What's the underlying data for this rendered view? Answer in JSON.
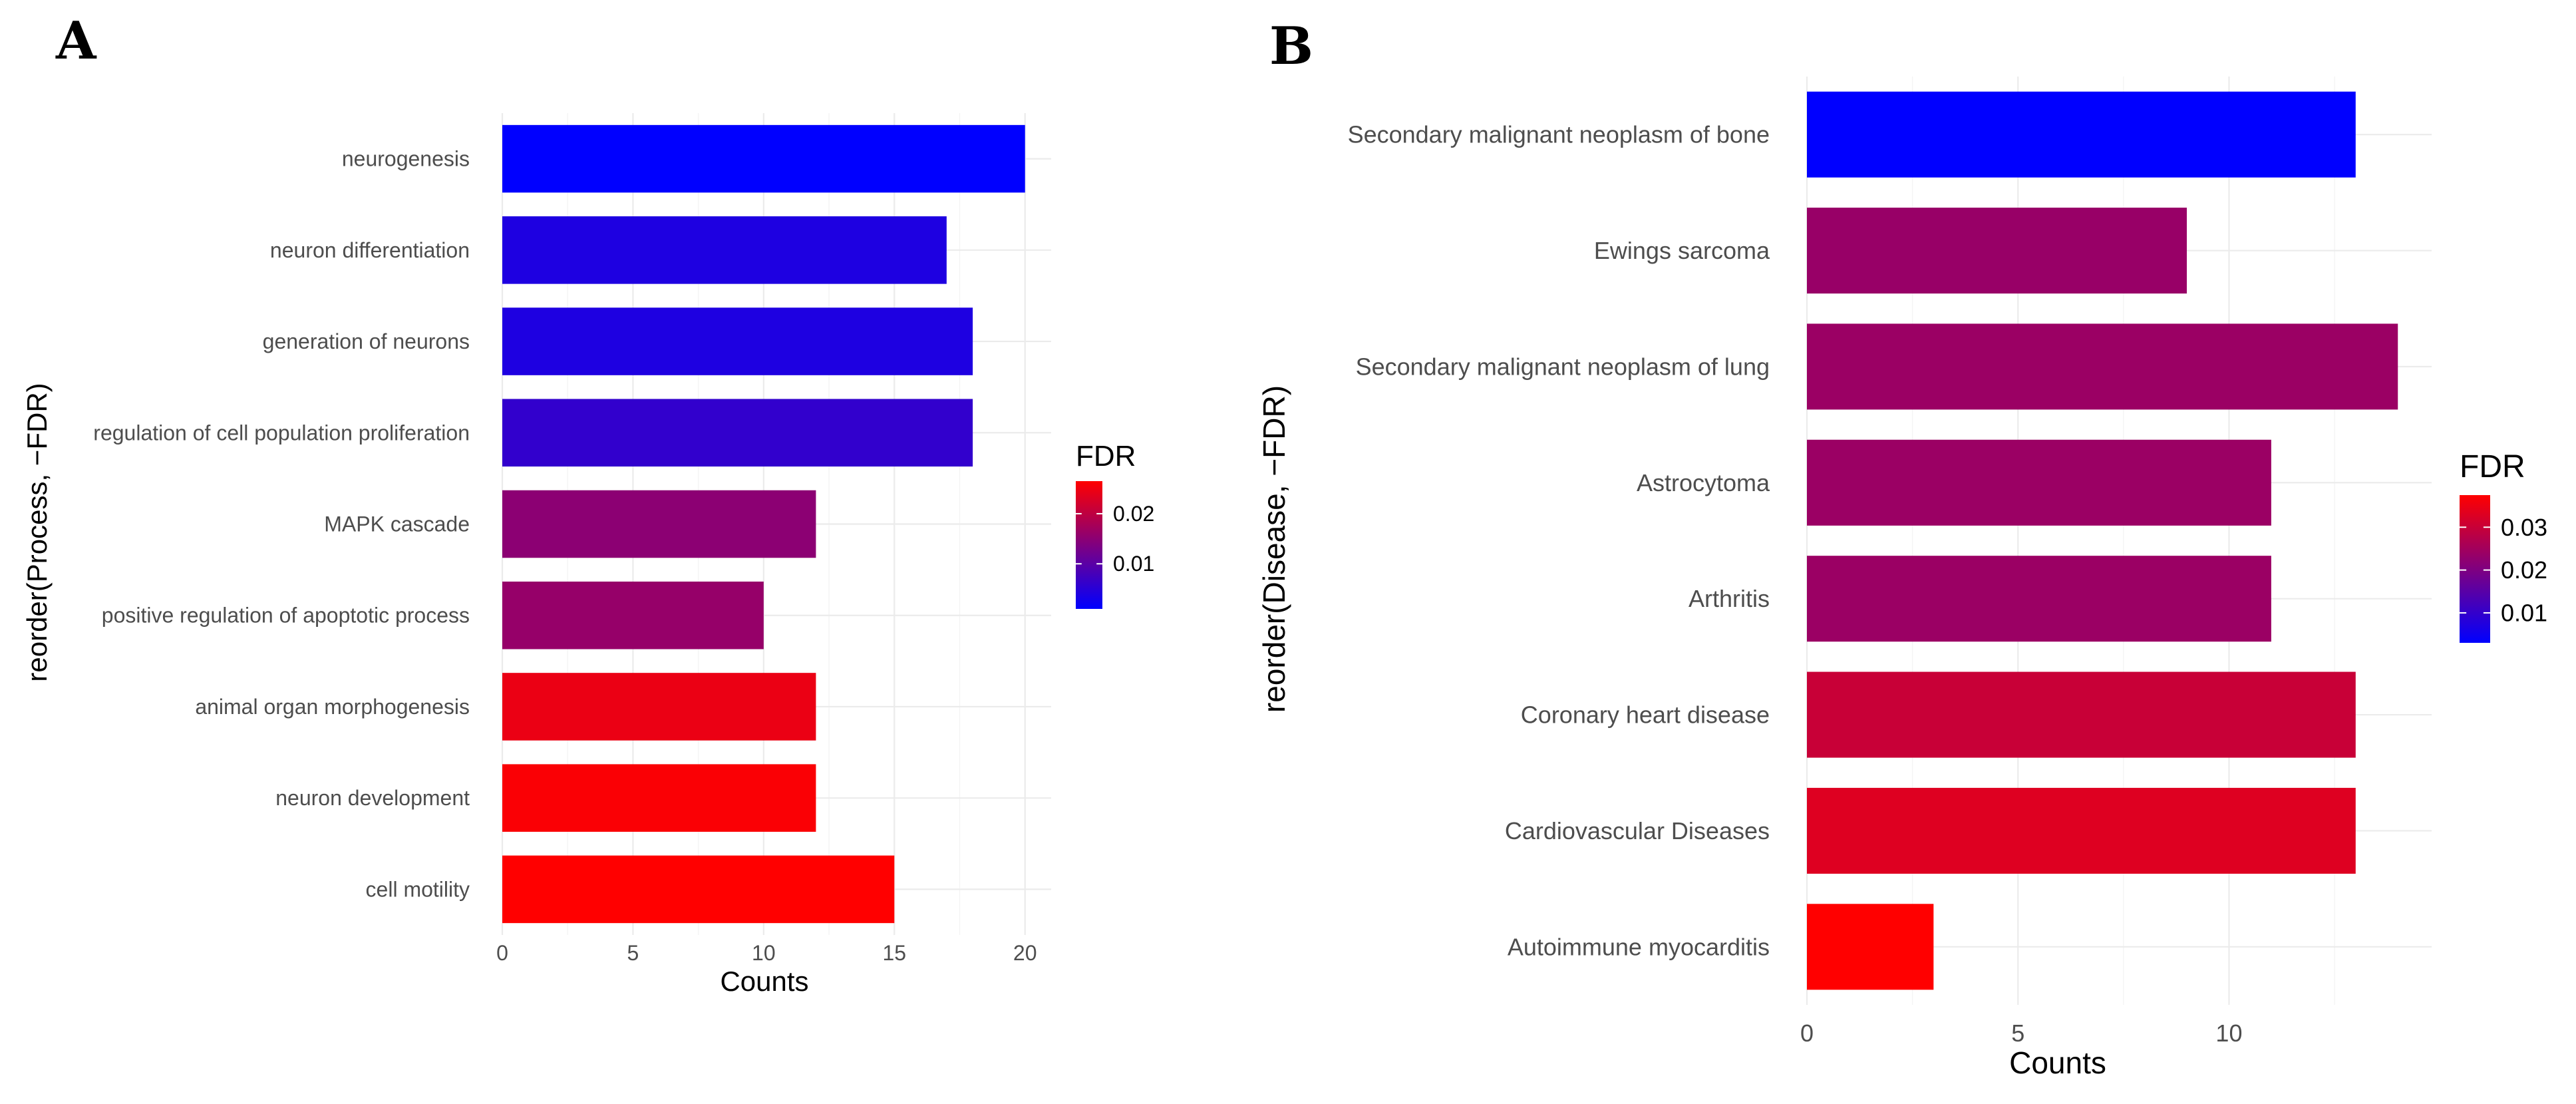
{
  "chart_data": [
    {
      "panel": "A",
      "type": "bar",
      "orientation": "horizontal",
      "xlabel": "Counts",
      "ylabel": "reorder(Process, −FDR)",
      "xlim": [
        0,
        21
      ],
      "xticks": [
        0,
        5,
        10,
        15,
        20
      ],
      "grid": true,
      "legend": {
        "title": "FDR",
        "position": "right",
        "range": [
          0.001,
          0.0265
        ],
        "ticks": [
          0.01,
          0.02
        ],
        "tick_labels": [
          "0.01",
          "0.02"
        ],
        "low_color": "#0000ff",
        "high_color": "#ff0000"
      },
      "categories": [
        "neurogenesis",
        "neuron differentiation",
        "generation of neurons",
        "regulation of cell population proliferation",
        "MAPK cascade",
        "positive regulation of apoptotic process",
        "animal organ morphogenesis",
        "neuron development",
        "cell motility"
      ],
      "values": [
        20,
        17,
        18,
        18,
        12,
        10,
        12,
        12,
        15
      ],
      "fdr": [
        0.001,
        0.004,
        0.004,
        0.006,
        0.015,
        0.016,
        0.0245,
        0.026,
        0.0265
      ]
    },
    {
      "panel": "B",
      "type": "bar",
      "orientation": "horizontal",
      "xlabel": "Counts",
      "ylabel": "reorder(Disease, −FDR)",
      "xlim": [
        0,
        14.8
      ],
      "xticks": [
        0,
        5,
        10
      ],
      "grid": true,
      "legend": {
        "title": "FDR",
        "position": "right",
        "range": [
          0.003,
          0.0375
        ],
        "ticks": [
          0.01,
          0.02,
          0.03
        ],
        "tick_labels": [
          "0.01",
          "0.02",
          "0.03"
        ],
        "low_color": "#0000ff",
        "high_color": "#ff0000"
      },
      "categories": [
        "Secondary malignant neoplasm of bone",
        "Ewings sarcoma",
        "Secondary malignant neoplasm of lung",
        "Astrocytoma",
        "Arthritis",
        "Coronary heart disease",
        "Cardiovascular Diseases",
        "Autoimmune myocarditis"
      ],
      "values": [
        13,
        9,
        14,
        11,
        11,
        13,
        13,
        3
      ],
      "fdr": [
        0.003,
        0.0235,
        0.024,
        0.024,
        0.024,
        0.03,
        0.033,
        0.0375
      ]
    }
  ]
}
